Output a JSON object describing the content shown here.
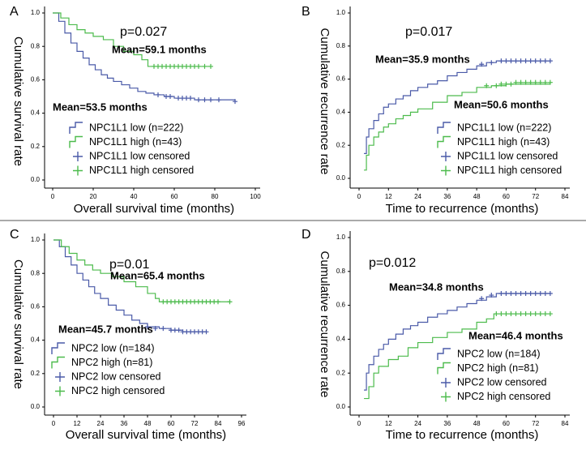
{
  "chart_data": [
    {
      "type": "kaplan-meier",
      "label": "A",
      "xlabel": "Overall survival time (months)",
      "ylabel": "Cumulative survival rate",
      "annotations": [
        "p=0.027",
        "Mean=59.1 months",
        "Mean=53.5 months"
      ],
      "xlim": [
        0,
        100
      ],
      "xticks": [
        0,
        20,
        40,
        60,
        80,
        100
      ],
      "ylim": [
        0,
        1
      ],
      "yticks": [
        {
          "value": 0,
          "label": "0.0"
        },
        {
          "value": 0.2,
          "label": "0.2"
        },
        {
          "value": 0.4,
          "label": "0.4"
        },
        {
          "value": 0.6,
          "label": "0.6"
        },
        {
          "value": 0.8,
          "label": "0.8"
        },
        {
          "value": 1,
          "label": "1.0"
        }
      ],
      "series": [
        {
          "name": "NPC1L1 low (n=222)",
          "color": "#4a5aa8",
          "x": [
            0,
            3,
            6,
            9,
            12,
            15,
            18,
            21,
            24,
            27,
            30,
            34,
            38,
            42,
            46,
            50,
            55,
            60,
            70,
            90
          ],
          "values": [
            1,
            0.95,
            0.88,
            0.82,
            0.77,
            0.73,
            0.69,
            0.66,
            0.63,
            0.61,
            0.59,
            0.57,
            0.55,
            0.53,
            0.52,
            0.51,
            0.5,
            0.49,
            0.48,
            0.47
          ]
        },
        {
          "name": "NPC1L1 high (n=43)",
          "color": "#4cbb4c",
          "x": [
            0,
            4,
            8,
            12,
            16,
            20,
            25,
            30,
            35,
            40,
            44,
            47,
            78
          ],
          "values": [
            1,
            0.97,
            0.93,
            0.9,
            0.88,
            0.86,
            0.84,
            0.8,
            0.77,
            0.75,
            0.72,
            0.68,
            0.68
          ]
        },
        {
          "name": "NPC1L1 low censored",
          "color": "#4a5aa8",
          "marker": "+",
          "x": [
            52,
            56,
            58,
            62,
            64,
            66,
            68,
            72,
            75,
            78,
            82,
            90
          ],
          "values": [
            0.51,
            0.5,
            0.5,
            0.49,
            0.49,
            0.49,
            0.49,
            0.48,
            0.48,
            0.48,
            0.48,
            0.47
          ]
        },
        {
          "name": "NPC1L1 high censored",
          "color": "#4cbb4c",
          "marker": "+",
          "x": [
            50,
            52,
            54,
            56,
            58,
            60,
            62,
            64,
            66,
            68,
            70,
            72,
            75,
            78
          ],
          "values": [
            0.68,
            0.68,
            0.68,
            0.68,
            0.68,
            0.68,
            0.68,
            0.68,
            0.68,
            0.68,
            0.68,
            0.68,
            0.68,
            0.68
          ]
        }
      ]
    },
    {
      "type": "kaplan-meier",
      "label": "B",
      "xlabel": "Time to recurrence (months)",
      "ylabel": "Cumulative recurrence rate",
      "annotations": [
        "p=0.017",
        "Mean=35.9 months",
        "Mean=50.6 months"
      ],
      "xlim": [
        0,
        84
      ],
      "xticks": [
        0,
        12,
        24,
        36,
        48,
        60,
        72,
        84
      ],
      "ylim": [
        0,
        1
      ],
      "yticks": [
        {
          "value": 0,
          "label": "0.0"
        },
        {
          "value": 0.2,
          "label": "0.2"
        },
        {
          "value": 0.4,
          "label": "0.4"
        },
        {
          "value": 0.6,
          "label": "0.6"
        },
        {
          "value": 0.8,
          "label": "0.8"
        },
        {
          "value": 1,
          "label": "1.0"
        }
      ],
      "series": [
        {
          "name": "NPC1L1 low (n=222)",
          "color": "#4a5aa8",
          "x": [
            2,
            3,
            4,
            6,
            8,
            10,
            12,
            15,
            18,
            21,
            24,
            28,
            32,
            36,
            40,
            44,
            48,
            52,
            56,
            78
          ],
          "values": [
            0.15,
            0.25,
            0.3,
            0.35,
            0.39,
            0.43,
            0.45,
            0.48,
            0.5,
            0.53,
            0.55,
            0.57,
            0.59,
            0.62,
            0.64,
            0.66,
            0.68,
            0.7,
            0.71,
            0.71
          ]
        },
        {
          "name": "NPC1L1 high (n=43)",
          "color": "#4cbb4c",
          "x": [
            2,
            3,
            4,
            6,
            8,
            10,
            12,
            15,
            18,
            21,
            24,
            30,
            36,
            42,
            48,
            54,
            60,
            78
          ],
          "values": [
            0.05,
            0.14,
            0.2,
            0.25,
            0.28,
            0.31,
            0.33,
            0.36,
            0.38,
            0.4,
            0.42,
            0.46,
            0.5,
            0.52,
            0.55,
            0.56,
            0.57,
            0.58
          ]
        },
        {
          "name": "NPC1L1 low censored",
          "color": "#4a5aa8",
          "marker": "+",
          "x": [
            50,
            54,
            58,
            60,
            62,
            64,
            66,
            68,
            70,
            72,
            74,
            76,
            78
          ],
          "values": [
            0.69,
            0.7,
            0.71,
            0.71,
            0.71,
            0.71,
            0.71,
            0.71,
            0.71,
            0.71,
            0.71,
            0.71,
            0.71
          ]
        },
        {
          "name": "NPC1L1 high censored",
          "color": "#4cbb4c",
          "marker": "+",
          "x": [
            52,
            56,
            58,
            60,
            62,
            64,
            66,
            68,
            70,
            72,
            74,
            76,
            78
          ],
          "values": [
            0.56,
            0.56,
            0.57,
            0.57,
            0.57,
            0.58,
            0.58,
            0.58,
            0.58,
            0.58,
            0.58,
            0.58,
            0.58
          ]
        }
      ]
    },
    {
      "type": "kaplan-meier",
      "label": "C",
      "xlabel": "Overall survival time (months)",
      "ylabel": "Cumulative survival rate",
      "annotations": [
        "p=0.01",
        "Mean=65.4 months",
        "Mean=45.7 months"
      ],
      "xlim": [
        0,
        96
      ],
      "xticks": [
        0,
        12,
        24,
        36,
        48,
        60,
        72,
        84,
        96
      ],
      "ylim": [
        0,
        1
      ],
      "yticks": [
        {
          "value": 0,
          "label": "0.0"
        },
        {
          "value": 0.2,
          "label": "0.2"
        },
        {
          "value": 0.4,
          "label": "0.4"
        },
        {
          "value": 0.6,
          "label": "0.6"
        },
        {
          "value": 0.8,
          "label": "0.8"
        },
        {
          "value": 1,
          "label": "1.0"
        }
      ],
      "series": [
        {
          "name": "NPC2 low (n=184)",
          "color": "#4a5aa8",
          "x": [
            0,
            3,
            6,
            9,
            12,
            15,
            18,
            21,
            24,
            28,
            32,
            36,
            40,
            44,
            48,
            54,
            60,
            66,
            78
          ],
          "values": [
            1,
            0.96,
            0.9,
            0.85,
            0.8,
            0.76,
            0.72,
            0.68,
            0.65,
            0.61,
            0.58,
            0.55,
            0.52,
            0.5,
            0.48,
            0.47,
            0.46,
            0.45,
            0.45
          ]
        },
        {
          "name": "NPC2 high (n=81)",
          "color": "#4cbb4c",
          "x": [
            0,
            4,
            8,
            12,
            16,
            20,
            24,
            30,
            36,
            42,
            48,
            52,
            54,
            90
          ],
          "values": [
            1,
            0.96,
            0.92,
            0.88,
            0.85,
            0.82,
            0.8,
            0.78,
            0.75,
            0.72,
            0.68,
            0.65,
            0.63,
            0.63
          ]
        },
        {
          "name": "NPC2 low censored",
          "color": "#4a5aa8",
          "marker": "+",
          "x": [
            48,
            52,
            56,
            60,
            62,
            64,
            66,
            68,
            70,
            72,
            74,
            76,
            78
          ],
          "values": [
            0.48,
            0.47,
            0.47,
            0.46,
            0.46,
            0.46,
            0.45,
            0.45,
            0.45,
            0.45,
            0.45,
            0.45,
            0.45
          ]
        },
        {
          "name": "NPC2 high censored",
          "color": "#4cbb4c",
          "marker": "+",
          "x": [
            56,
            58,
            60,
            62,
            64,
            66,
            68,
            70,
            72,
            74,
            76,
            78,
            80,
            82,
            84,
            90
          ],
          "values": [
            0.63,
            0.63,
            0.63,
            0.63,
            0.63,
            0.63,
            0.63,
            0.63,
            0.63,
            0.63,
            0.63,
            0.63,
            0.63,
            0.63,
            0.63,
            0.63
          ]
        }
      ]
    },
    {
      "type": "kaplan-meier",
      "label": "D",
      "xlabel": "Time to recurrence (months)",
      "ylabel": "Cumulative recurrence rate",
      "annotations": [
        "p=0.012",
        "Mean=34.8 months",
        "Mean=46.4 months"
      ],
      "xlim": [
        0,
        84
      ],
      "xticks": [
        0,
        12,
        24,
        36,
        48,
        60,
        72,
        84
      ],
      "ylim": [
        0,
        1
      ],
      "yticks": [
        {
          "value": 0,
          "label": "0.0"
        },
        {
          "value": 0.2,
          "label": "0.2"
        },
        {
          "value": 0.4,
          "label": "0.4"
        },
        {
          "value": 0.6,
          "label": "0.6"
        },
        {
          "value": 0.8,
          "label": "0.8"
        },
        {
          "value": 1,
          "label": "1.0"
        }
      ],
      "series": [
        {
          "name": "NPC2 low (n=184)",
          "color": "#4a5aa8",
          "x": [
            2,
            3,
            4,
            6,
            8,
            10,
            12,
            15,
            18,
            21,
            24,
            28,
            32,
            36,
            40,
            44,
            48,
            52,
            56,
            78
          ],
          "values": [
            0.1,
            0.2,
            0.25,
            0.3,
            0.34,
            0.37,
            0.4,
            0.43,
            0.46,
            0.48,
            0.5,
            0.53,
            0.55,
            0.57,
            0.59,
            0.61,
            0.63,
            0.65,
            0.67,
            0.67
          ]
        },
        {
          "name": "NPC2 high (n=81)",
          "color": "#4cbb4c",
          "x": [
            2,
            4,
            6,
            8,
            12,
            16,
            20,
            24,
            30,
            36,
            42,
            48,
            52,
            55,
            78
          ],
          "values": [
            0.05,
            0.12,
            0.2,
            0.24,
            0.28,
            0.3,
            0.35,
            0.38,
            0.41,
            0.44,
            0.46,
            0.5,
            0.52,
            0.55,
            0.55
          ]
        },
        {
          "name": "NPC2 low censored",
          "color": "#4a5aa8",
          "marker": "+",
          "x": [
            50,
            54,
            58,
            60,
            62,
            64,
            66,
            68,
            70,
            72,
            74,
            76,
            78
          ],
          "values": [
            0.64,
            0.66,
            0.67,
            0.67,
            0.67,
            0.67,
            0.67,
            0.67,
            0.67,
            0.67,
            0.67,
            0.67,
            0.67
          ]
        },
        {
          "name": "NPC2 high censored",
          "color": "#4cbb4c",
          "marker": "+",
          "x": [
            56,
            58,
            60,
            62,
            64,
            66,
            68,
            70,
            72,
            74,
            76,
            78
          ],
          "values": [
            0.55,
            0.55,
            0.55,
            0.55,
            0.55,
            0.55,
            0.55,
            0.55,
            0.55,
            0.55,
            0.55,
            0.55
          ]
        }
      ]
    }
  ]
}
